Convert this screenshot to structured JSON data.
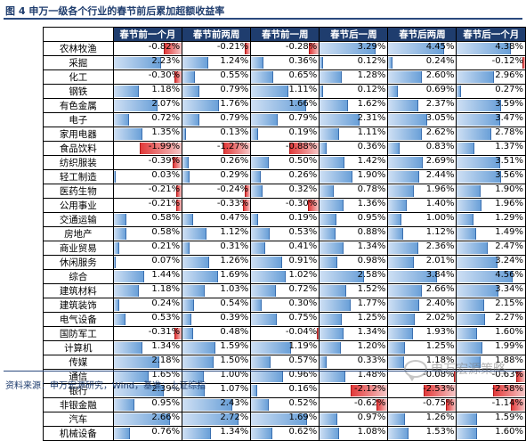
{
  "title": "图 4  申万一级各个行业的春节前后累加超额收益率",
  "source": "资料来源：申万宏源研究，Wind，基准：上证综指",
  "watermark": "申万宏源策略",
  "colors": {
    "positive": "#6aa0d8",
    "negative": "#e23b3b",
    "header": "#1f3d6e"
  },
  "chart_data": {
    "type": "table",
    "columns": [
      "春节前一个月",
      "春节前两周",
      "春节前一周",
      "春节后一周",
      "春节后两周",
      "春节后一个月"
    ],
    "rows": [
      {
        "name": "农林牧渔",
        "values": [
          -0.82,
          -0.21,
          -0.28,
          3.29,
          4.45,
          4.38
        ]
      },
      {
        "name": "采掘",
        "values": [
          2.23,
          1.24,
          0.36,
          0.12,
          0.24,
          -0.12
        ]
      },
      {
        "name": "化工",
        "values": [
          -0.3,
          0.55,
          0.65,
          1.28,
          2.6,
          2.96
        ]
      },
      {
        "name": "钢铁",
        "values": [
          1.18,
          0.79,
          1.11,
          0.12,
          0.69,
          0.27
        ]
      },
      {
        "name": "有色金属",
        "values": [
          2.07,
          1.76,
          1.66,
          1.62,
          2.37,
          3.59
        ]
      },
      {
        "name": "电子",
        "values": [
          0.72,
          0.79,
          0.79,
          2.31,
          3.05,
          3.47
        ]
      },
      {
        "name": "家用电器",
        "values": [
          1.35,
          0.13,
          0.19,
          1.11,
          2.62,
          2.78
        ]
      },
      {
        "name": "食品饮料",
        "values": [
          -1.99,
          -1.27,
          -0.88,
          0.36,
          0.83,
          1.37
        ]
      },
      {
        "name": "纺织服装",
        "values": [
          -0.39,
          0.26,
          0.5,
          1.42,
          2.69,
          3.51
        ]
      },
      {
        "name": "轻工制造",
        "values": [
          0.03,
          0.29,
          0.26,
          1.9,
          2.44,
          3.56
        ]
      },
      {
        "name": "医药生物",
        "values": [
          -0.21,
          -0.24,
          0.32,
          0.78,
          1.96,
          1.9
        ]
      },
      {
        "name": "公用事业",
        "values": [
          -0.21,
          -0.33,
          -0.3,
          1.36,
          1.4,
          1.96
        ]
      },
      {
        "name": "交通运输",
        "values": [
          0.58,
          0.47,
          0.19,
          0.95,
          1.0,
          1.29
        ]
      },
      {
        "name": "房地产",
        "values": [
          0.58,
          1.12,
          0.53,
          0.88,
          1.12,
          1.49
        ]
      },
      {
        "name": "商业贸易",
        "values": [
          0.21,
          0.31,
          0.41,
          1.34,
          2.36,
          2.47
        ]
      },
      {
        "name": "休闲服务",
        "values": [
          0.07,
          1.26,
          0.91,
          0.98,
          2.01,
          3.24
        ]
      },
      {
        "name": "综合",
        "values": [
          1.44,
          1.69,
          1.02,
          2.58,
          3.84,
          4.56
        ]
      },
      {
        "name": "建筑材料",
        "values": [
          1.18,
          1.03,
          0.72,
          1.52,
          2.66,
          3.34
        ]
      },
      {
        "name": "建筑装饰",
        "values": [
          0.24,
          0.54,
          0.3,
          1.77,
          2.4,
          2.15
        ]
      },
      {
        "name": "电气设备",
        "values": [
          0.53,
          0.39,
          0.75,
          1.25,
          2.02,
          2.27
        ]
      },
      {
        "name": "国防军工",
        "values": [
          -0.31,
          0.48,
          -0.04,
          1.34,
          1.93,
          1.6
        ]
      },
      {
        "name": "计算机",
        "values": [
          1.34,
          1.59,
          1.19,
          1.2,
          1.25,
          1.99
        ]
      },
      {
        "name": "传媒",
        "values": [
          2.18,
          1.5,
          0.57,
          0.33,
          1.18,
          1.88
        ]
      },
      {
        "name": "通信",
        "values": [
          1.65,
          1.0,
          0.96,
          1.48,
          -0.08,
          -0.63
        ]
      },
      {
        "name": "银行",
        "values": [
          2.39,
          1.07,
          0.16,
          -2.12,
          -2.53,
          -2.58
        ]
      },
      {
        "name": "非银金融",
        "values": [
          0.95,
          2.43,
          0.52,
          -0.62,
          -0.75,
          -1.14
        ]
      },
      {
        "name": "汽车",
        "values": [
          2.66,
          2.72,
          1.69,
          0.97,
          1.26,
          1.59
        ]
      },
      {
        "name": "机械设备",
        "values": [
          0.76,
          1.34,
          0.62,
          1.08,
          1.53,
          1.6
        ]
      }
    ]
  }
}
